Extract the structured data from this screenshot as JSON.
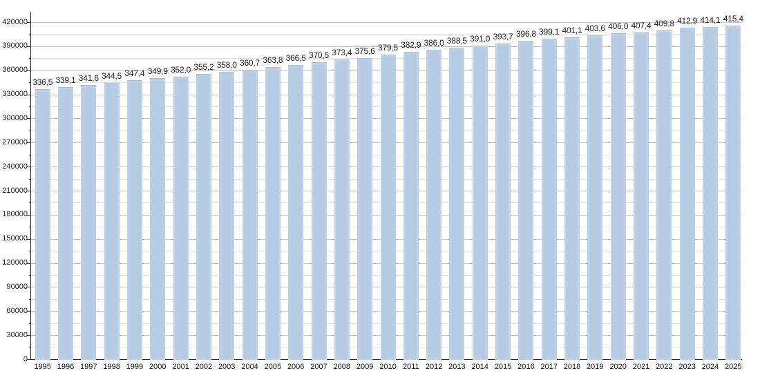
{
  "chart_data": {
    "type": "bar",
    "title": "",
    "xlabel": "",
    "ylabel": "",
    "categories": [
      "1995",
      "1996",
      "1997",
      "1998",
      "1999",
      "2000",
      "2001",
      "2002",
      "2003",
      "2004",
      "2005",
      "2006",
      "2007",
      "2008",
      "2009",
      "2010",
      "2011",
      "2012",
      "2013",
      "2014",
      "2015",
      "2016",
      "2017",
      "2018",
      "2019",
      "2020",
      "2021",
      "2022",
      "2023",
      "2024",
      "2025"
    ],
    "values": [
      336500,
      339100,
      341600,
      344500,
      347400,
      349900,
      352000,
      355200,
      358000,
      360700,
      363800,
      366500,
      370500,
      373400,
      375600,
      379500,
      382900,
      386000,
      388500,
      391000,
      393700,
      396800,
      399100,
      401100,
      403600,
      406000,
      407400,
      409800,
      412900,
      414100,
      415400
    ],
    "bar_value_labels": [
      "336,5",
      "339,1",
      "341,6",
      "344,5",
      "347,4",
      "349,9",
      "352,0",
      "355,2",
      "358,0",
      "360,7",
      "363,8",
      "366,5",
      "370,5",
      "373,4",
      "375,6",
      "379,5",
      "382,9",
      "386,0",
      "388,5",
      "391,0",
      "393,7",
      "396,8",
      "399,1",
      "401,1",
      "403,6",
      "406,0",
      "407,4",
      "409,8",
      "412,9",
      "414,1",
      "415,4"
    ],
    "ylim": [
      0,
      420000
    ],
    "ytick_interval": 30000,
    "yminor_interval": 15000,
    "ytick_labels": [
      "0",
      "30000",
      "60000",
      "90000",
      "120000",
      "150000",
      "180000",
      "210000",
      "240000",
      "270000",
      "300000",
      "330000",
      "360000",
      "390000",
      "420000"
    ],
    "grid": true,
    "legend": null,
    "styles": {
      "bar_fill": "#b5cae3",
      "bar_edge": "#a7bed8",
      "grid_major": "#c2c2c2",
      "grid_minor": "#e3e3e3",
      "axis_color": "#1a1a1a",
      "text_color": "#1c1c1c",
      "background": "#ffffff"
    }
  }
}
